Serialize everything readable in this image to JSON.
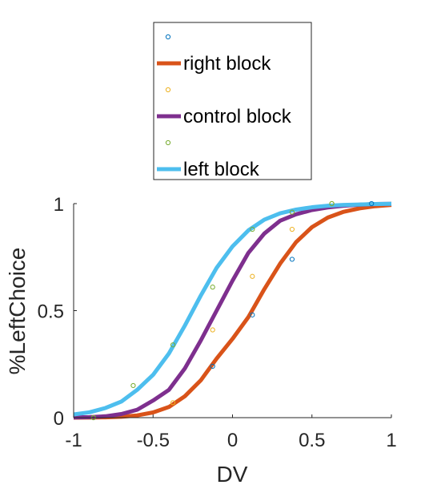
{
  "chart_data": {
    "type": "line",
    "xlabel": "DV",
    "ylabel": "%LeftChoice",
    "xlim": [
      -1,
      1
    ],
    "ylim": [
      0,
      1
    ],
    "xticks": [
      -1,
      -0.5,
      0,
      0.5,
      1
    ],
    "xtick_labels": [
      "-1",
      "-0.5",
      "0",
      "0.5",
      "1"
    ],
    "yticks": [
      0,
      0.5,
      1
    ],
    "ytick_labels": [
      "0",
      "0.5",
      "1"
    ],
    "grid": false,
    "legend_position": "top",
    "legend": [
      {
        "kind": "marker",
        "label": "",
        "color": "#0072BD"
      },
      {
        "kind": "line",
        "label": "right block",
        "color": "#D95319"
      },
      {
        "kind": "marker",
        "label": "",
        "color": "#EDB120"
      },
      {
        "kind": "line",
        "label": "control block",
        "color": "#7E2F8E"
      },
      {
        "kind": "marker",
        "label": "",
        "color": "#77AC30"
      },
      {
        "kind": "line",
        "label": "left block",
        "color": "#4DBEEE"
      }
    ],
    "series": [
      {
        "name": "",
        "kind": "scatter",
        "color": "#0072BD",
        "x": [
          -0.875,
          -0.125,
          0.125,
          0.375,
          0.875
        ],
        "y": [
          0.0,
          0.24,
          0.48,
          0.74,
          1.0
        ]
      },
      {
        "name": "right block",
        "kind": "curve",
        "color": "#D95319",
        "x": [
          -1,
          -0.9,
          -0.8,
          -0.7,
          -0.6,
          -0.5,
          -0.4,
          -0.3,
          -0.2,
          -0.1,
          0,
          0.1,
          0.2,
          0.3,
          0.4,
          0.5,
          0.6,
          0.7,
          0.8,
          0.9,
          1
        ],
        "y": [
          0.0002,
          0.0006,
          0.0016,
          0.0041,
          0.0104,
          0.0244,
          0.05,
          0.1,
          0.174,
          0.276,
          0.368,
          0.47,
          0.6,
          0.72,
          0.82,
          0.89,
          0.935,
          0.962,
          0.978,
          0.988,
          0.994
        ]
      },
      {
        "name": "",
        "kind": "scatter",
        "color": "#EDB120",
        "x": [
          -0.875,
          -0.375,
          -0.125,
          0.125,
          0.375,
          0.625
        ],
        "y": [
          0.0,
          0.07,
          0.41,
          0.66,
          0.88,
          1.0
        ]
      },
      {
        "name": "control block",
        "kind": "curve",
        "color": "#7E2F8E",
        "x": [
          -1,
          -0.9,
          -0.8,
          -0.7,
          -0.6,
          -0.5,
          -0.4,
          -0.3,
          -0.2,
          -0.1,
          0,
          0.1,
          0.2,
          0.3,
          0.4,
          0.5,
          0.6,
          0.7,
          0.8,
          0.9,
          1
        ],
        "y": [
          0.0009,
          0.0024,
          0.0064,
          0.0168,
          0.037,
          0.08,
          0.13,
          0.23,
          0.36,
          0.5,
          0.64,
          0.77,
          0.86,
          0.92,
          0.95,
          0.97,
          0.982,
          0.99,
          0.995,
          0.998,
          0.999
        ]
      },
      {
        "name": "",
        "kind": "scatter",
        "color": "#77AC30",
        "x": [
          -0.875,
          -0.625,
          -0.375,
          -0.125,
          0.125,
          0.375,
          0.625
        ],
        "y": [
          0.0,
          0.15,
          0.34,
          0.61,
          0.88,
          0.96,
          1.0
        ]
      },
      {
        "name": "left block",
        "kind": "curve",
        "color": "#4DBEEE",
        "x": [
          -1,
          -0.9,
          -0.8,
          -0.7,
          -0.6,
          -0.5,
          -0.4,
          -0.3,
          -0.2,
          -0.1,
          0,
          0.1,
          0.2,
          0.3,
          0.4,
          0.5,
          0.6,
          0.7,
          0.8,
          0.9,
          1
        ],
        "y": [
          0.015,
          0.025,
          0.045,
          0.075,
          0.13,
          0.2,
          0.3,
          0.43,
          0.57,
          0.7,
          0.8,
          0.875,
          0.925,
          0.955,
          0.972,
          0.983,
          0.99,
          0.994,
          0.996,
          0.998,
          0.999
        ]
      }
    ]
  }
}
